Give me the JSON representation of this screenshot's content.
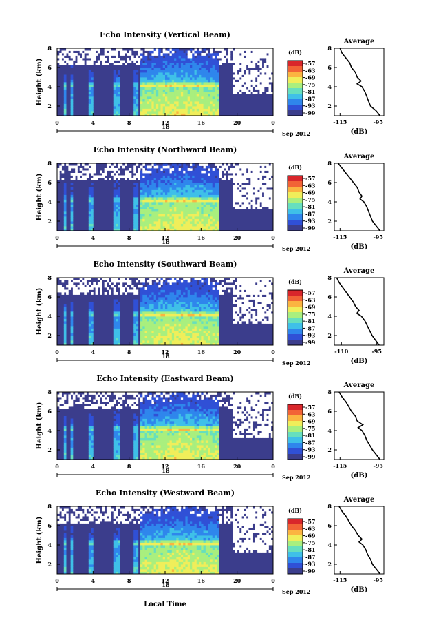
{
  "figure": {
    "xlabel": "Local Time",
    "date_label": "Sep 2012",
    "day_label": "18",
    "colorbar_unit": "(dB)",
    "average_title": "Average",
    "average_xlabel": "(dB)",
    "colors": {
      "scale": [
        "#3b3d8c",
        "#3050d6",
        "#2f86ec",
        "#3fc0e8",
        "#66dfbe",
        "#a9ef7e",
        "#f0ee5a",
        "#fbb441",
        "#f26336",
        "#d9262b"
      ],
      "background": "#3b3d8c",
      "no_data": "#ffffff"
    }
  },
  "chart_data": [
    {
      "type": "heatmap",
      "title": "Echo Intensity (Vertical Beam)",
      "ylabel": "Height (km)",
      "xlim": [
        0,
        24
      ],
      "ylim": [
        1,
        8
      ],
      "x_ticks": [
        "0",
        "4",
        "8",
        "12",
        "16",
        "20",
        "0"
      ],
      "y_ticks": [
        "2",
        "4",
        "6",
        "8"
      ],
      "colorbar_ticks": [
        "-57",
        "-63",
        "-69",
        "-75",
        "-81",
        "-87",
        "-93",
        "-99"
      ],
      "rain_periods_hours": [
        [
          0.8,
          1.1
        ],
        [
          1.6,
          1.8
        ],
        [
          3.6,
          4.0
        ],
        [
          6.3,
          7.0
        ],
        [
          8.5,
          9.0
        ],
        [
          9.3,
          18.0
        ]
      ],
      "melting_layer_km": 4.2,
      "average_profile": {
        "title": "Average",
        "xlabel": "(dB)",
        "x_ticks": [
          "-115",
          "-95"
        ],
        "xlim": [
          -118,
          -92
        ],
        "y_ticks": [
          "2",
          "4",
          "6",
          "8"
        ],
        "height_km": [
          1.0,
          1.5,
          2.0,
          2.5,
          3.0,
          3.5,
          4.0,
          4.3,
          4.6,
          5.0,
          5.5,
          6.0,
          6.5,
          7.0,
          7.5,
          8.0
        ],
        "value_db": [
          -94,
          -96,
          -99,
          -100,
          -101,
          -102,
          -103.5,
          -106,
          -104,
          -106,
          -107,
          -109,
          -110,
          -112,
          -114,
          -115
        ]
      }
    },
    {
      "type": "heatmap",
      "title": "Echo Intensity (Northward Beam)",
      "ylabel": "Height (km)",
      "xlim": [
        0,
        24
      ],
      "ylim": [
        1,
        8
      ],
      "x_ticks": [
        "0",
        "4",
        "8",
        "12",
        "16",
        "20",
        "0"
      ],
      "y_ticks": [
        "2",
        "4",
        "6",
        "8"
      ],
      "colorbar_ticks": [
        "-57",
        "-63",
        "-69",
        "-75",
        "-81",
        "-87",
        "-93",
        "-99"
      ],
      "rain_periods_hours": [
        [
          0.8,
          1.1
        ],
        [
          1.6,
          1.8
        ],
        [
          3.6,
          4.0
        ],
        [
          6.3,
          7.0
        ],
        [
          8.5,
          9.0
        ],
        [
          9.3,
          18.0
        ]
      ],
      "melting_layer_km": 4.2,
      "average_profile": {
        "title": "Average",
        "xlabel": "(dB)",
        "x_ticks": [
          "-115",
          "-95"
        ],
        "xlim": [
          -118,
          -92
        ],
        "y_ticks": [
          "2",
          "4",
          "6",
          "8"
        ],
        "height_km": [
          1.0,
          1.5,
          2.0,
          2.5,
          3.0,
          3.5,
          4.0,
          4.3,
          4.6,
          5.0,
          5.5,
          6.0,
          6.5,
          7.0,
          7.5,
          8.0
        ],
        "value_db": [
          -94,
          -96,
          -98,
          -99,
          -100,
          -101,
          -102.5,
          -104.5,
          -103.5,
          -105,
          -106,
          -108,
          -110,
          -112,
          -114,
          -116
        ]
      }
    },
    {
      "type": "heatmap",
      "title": "Echo Intensity (Southward Beam)",
      "ylabel": "Height (km)",
      "xlim": [
        0,
        24
      ],
      "ylim": [
        1,
        8
      ],
      "x_ticks": [
        "0",
        "4",
        "8",
        "12",
        "16",
        "20",
        "0"
      ],
      "y_ticks": [
        "2",
        "4",
        "6",
        "8"
      ],
      "colorbar_ticks": [
        "-57",
        "-63",
        "-69",
        "-75",
        "-81",
        "-87",
        "-93",
        "-99"
      ],
      "rain_periods_hours": [
        [
          0.8,
          1.1
        ],
        [
          1.6,
          1.8
        ],
        [
          3.6,
          4.0
        ],
        [
          6.3,
          7.0
        ],
        [
          8.5,
          9.0
        ],
        [
          9.3,
          18.0
        ]
      ],
      "melting_layer_km": 4.2,
      "average_profile": {
        "title": "Average",
        "xlabel": "(dB)",
        "x_ticks": [
          "-110",
          "-95"
        ],
        "xlim": [
          -113,
          -92
        ],
        "y_ticks": [
          "2",
          "4",
          "6",
          "8"
        ],
        "height_km": [
          1.0,
          1.5,
          2.0,
          2.5,
          3.0,
          3.5,
          4.0,
          4.3,
          4.6,
          5.0,
          5.5,
          6.0,
          6.5,
          7.0,
          7.5,
          8.0
        ],
        "value_db": [
          -94,
          -95.5,
          -97,
          -98,
          -99,
          -100,
          -101.5,
          -103.5,
          -102.5,
          -104,
          -105,
          -106.5,
          -108,
          -109.5,
          -111,
          -112
        ]
      }
    },
    {
      "type": "heatmap",
      "title": "Echo Intensity (Eastward Beam)",
      "ylabel": "Height (km)",
      "xlim": [
        0,
        24
      ],
      "ylim": [
        1,
        8
      ],
      "x_ticks": [
        "0",
        "4",
        "8",
        "12",
        "16",
        "20",
        "0"
      ],
      "y_ticks": [
        "2",
        "4",
        "6",
        "8"
      ],
      "colorbar_ticks": [
        "-57",
        "-63",
        "-69",
        "-75",
        "-81",
        "-87",
        "-93",
        "-99"
      ],
      "rain_periods_hours": [
        [
          0.8,
          1.1
        ],
        [
          1.6,
          1.8
        ],
        [
          3.6,
          4.0
        ],
        [
          6.3,
          7.0
        ],
        [
          8.5,
          9.0
        ],
        [
          9.3,
          18.0
        ]
      ],
      "melting_layer_km": 4.2,
      "average_profile": {
        "title": "Average",
        "xlabel": "(dB)",
        "x_ticks": [
          "-115",
          "-95"
        ],
        "xlim": [
          -118,
          -92
        ],
        "y_ticks": [
          "2",
          "4",
          "6",
          "8"
        ],
        "height_km": [
          1.0,
          1.5,
          2.0,
          2.5,
          3.0,
          3.5,
          4.0,
          4.3,
          4.6,
          5.0,
          5.5,
          6.0,
          6.5,
          7.0,
          7.5,
          8.0
        ],
        "value_db": [
          -94,
          -96,
          -98,
          -99.5,
          -101,
          -102,
          -103.5,
          -105.5,
          -103,
          -106,
          -107,
          -109,
          -110.5,
          -112,
          -114,
          -115.5
        ]
      }
    },
    {
      "type": "heatmap",
      "title": "Echo Intensity (Westward Beam)",
      "ylabel": "Height (km)",
      "xlim": [
        0,
        24
      ],
      "ylim": [
        1,
        8
      ],
      "x_ticks": [
        "0",
        "4",
        "8",
        "12",
        "16",
        "20",
        "0"
      ],
      "y_ticks": [
        "2",
        "4",
        "6",
        "8"
      ],
      "colorbar_ticks": [
        "-57",
        "-63",
        "-69",
        "-75",
        "-81",
        "-87",
        "-93",
        "-99"
      ],
      "rain_periods_hours": [
        [
          0.8,
          1.1
        ],
        [
          1.6,
          1.8
        ],
        [
          3.6,
          4.0
        ],
        [
          6.3,
          7.0
        ],
        [
          8.5,
          9.0
        ],
        [
          9.3,
          18.0
        ]
      ],
      "melting_layer_km": 4.2,
      "average_profile": {
        "title": "Average",
        "xlabel": "(dB)",
        "x_ticks": [
          "-115",
          "-95"
        ],
        "xlim": [
          -118,
          -92
        ],
        "y_ticks": [
          "2",
          "4",
          "6",
          "8"
        ],
        "height_km": [
          1.0,
          1.5,
          2.0,
          2.5,
          3.0,
          3.5,
          4.0,
          4.3,
          4.6,
          5.0,
          5.5,
          6.0,
          6.5,
          7.0,
          7.5,
          8.0
        ],
        "value_db": [
          -94,
          -96,
          -98,
          -99,
          -100.5,
          -101.5,
          -103,
          -105,
          -103.5,
          -105.5,
          -107,
          -109,
          -110.5,
          -112,
          -114,
          -115.5
        ]
      }
    }
  ]
}
